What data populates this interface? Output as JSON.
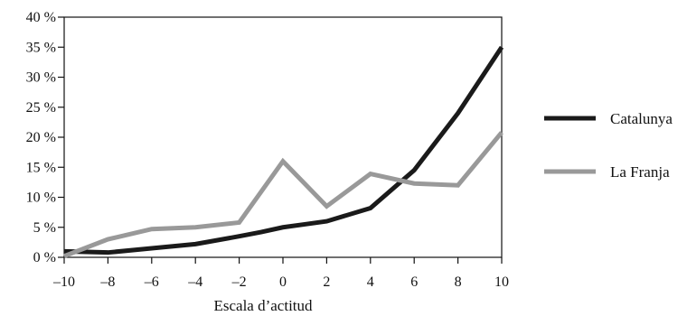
{
  "chart_data": {
    "type": "line",
    "xlabel": "Escala d’actitud",
    "ylabel": "",
    "xlim": [
      -10,
      10
    ],
    "ylim": [
      0,
      40
    ],
    "x_ticks": [
      -10,
      -8,
      -6,
      -4,
      -2,
      0,
      2,
      4,
      6,
      8,
      10
    ],
    "x_tick_labels": [
      "–10",
      "–8",
      "–6",
      "–4",
      "–2",
      "0",
      "2",
      "4",
      "6",
      "8",
      "10"
    ],
    "y_ticks": [
      0,
      5,
      10,
      15,
      20,
      25,
      30,
      35,
      40
    ],
    "y_tick_labels": [
      "0 %",
      "5 %",
      "10 %",
      "15 %",
      "20 %",
      "25 %",
      "30 %",
      "35 %",
      "40 %"
    ],
    "grid": false,
    "legend_position": "right",
    "series": [
      {
        "name": "Catalunya",
        "color": "#1a1a1a",
        "x": [
          -10,
          -8,
          -6,
          -4,
          -2,
          -1,
          0,
          1,
          2,
          4,
          6,
          8,
          10
        ],
        "y": [
          1.0,
          0.8,
          1.5,
          2.2,
          3.5,
          4.2,
          5.0,
          5.5,
          6.0,
          8.2,
          14.5,
          24.0,
          35.0
        ]
      },
      {
        "name": "La Franja",
        "color": "#999999",
        "x": [
          -10,
          -8,
          -6,
          -4,
          -2,
          0,
          2,
          4,
          6,
          8,
          10
        ],
        "y": [
          0.2,
          3.0,
          4.7,
          5.0,
          5.8,
          16.0,
          8.5,
          13.9,
          12.3,
          12.0,
          20.8
        ]
      }
    ]
  }
}
